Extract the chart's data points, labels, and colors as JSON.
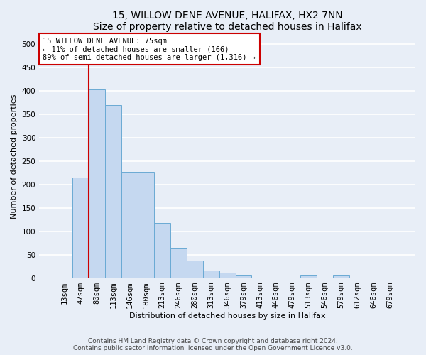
{
  "title1": "15, WILLOW DENE AVENUE, HALIFAX, HX2 7NN",
  "title2": "Size of property relative to detached houses in Halifax",
  "xlabel": "Distribution of detached houses by size in Halifax",
  "ylabel": "Number of detached properties",
  "categories": [
    "13sqm",
    "47sqm",
    "80sqm",
    "113sqm",
    "146sqm",
    "180sqm",
    "213sqm",
    "246sqm",
    "280sqm",
    "313sqm",
    "346sqm",
    "379sqm",
    "413sqm",
    "446sqm",
    "479sqm",
    "513sqm",
    "546sqm",
    "579sqm",
    "612sqm",
    "646sqm",
    "679sqm"
  ],
  "values": [
    2,
    215,
    403,
    370,
    228,
    228,
    118,
    65,
    38,
    17,
    12,
    6,
    2,
    2,
    2,
    6,
    1,
    6,
    1,
    0,
    1
  ],
  "bar_color": "#c5d8f0",
  "bar_edge_color": "#6aaad4",
  "highlight_color": "#cc0000",
  "property_line_x": 1.5,
  "annotation_text": "15 WILLOW DENE AVENUE: 75sqm\n← 11% of detached houses are smaller (166)\n89% of semi-detached houses are larger (1,316) →",
  "annotation_box_color": "#ffffff",
  "annotation_border_color": "#cc0000",
  "ylim": [
    0,
    520
  ],
  "yticks": [
    0,
    50,
    100,
    150,
    200,
    250,
    300,
    350,
    400,
    450,
    500
  ],
  "footer_line1": "Contains HM Land Registry data © Crown copyright and database right 2024.",
  "footer_line2": "Contains public sector information licensed under the Open Government Licence v3.0.",
  "bg_color": "#e8eef7",
  "plot_bg_color": "#e8eef7",
  "grid_color": "#ffffff",
  "title_fontsize": 10,
  "axis_label_fontsize": 8,
  "tick_fontsize": 7.5,
  "footer_fontsize": 6.5
}
